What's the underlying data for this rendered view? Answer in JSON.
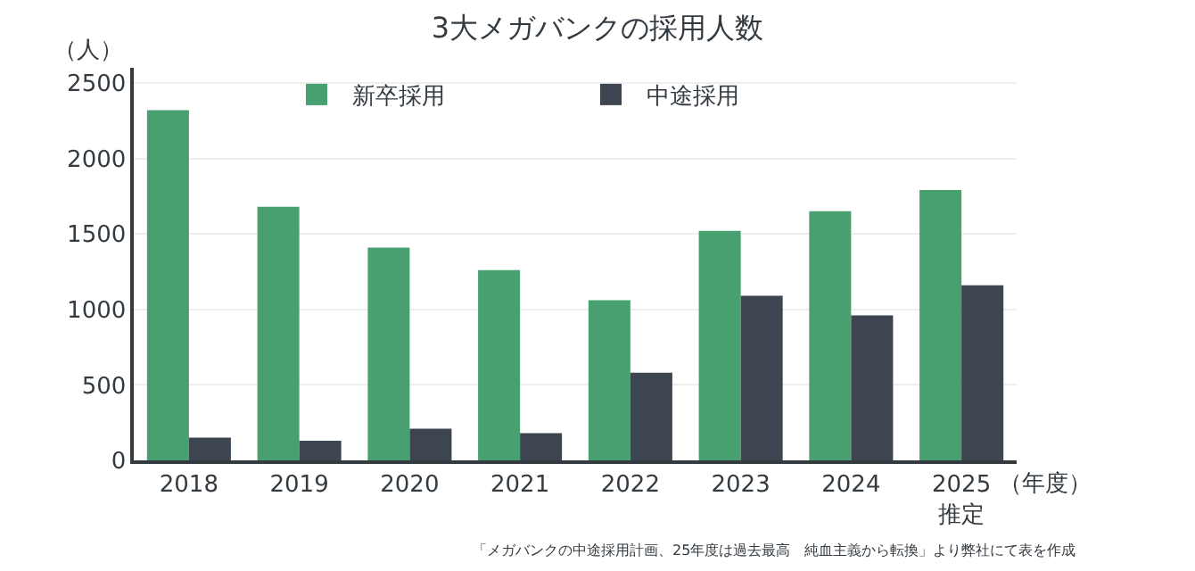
{
  "chart_data": {
    "type": "bar",
    "title": "3大メガバンクの採用人数",
    "ylabel": "（人）",
    "xlabel": "（年度）",
    "categories": [
      "2018",
      "2019",
      "2020",
      "2021",
      "2022",
      "2023",
      "2024",
      "2025\n推定"
    ],
    "series": [
      {
        "name": "新卒採用",
        "color": "#48a070",
        "values": [
          2320,
          1680,
          1410,
          1260,
          1060,
          1520,
          1650,
          1790
        ]
      },
      {
        "name": "中途採用",
        "color": "#3d4650",
        "values": [
          150,
          130,
          210,
          180,
          580,
          1090,
          960,
          1160
        ]
      }
    ],
    "ylim": [
      0,
      2600
    ],
    "yticks": [
      0,
      500,
      1000,
      1500,
      2000,
      2500
    ],
    "grid": "y",
    "legend": "top",
    "annotations": [
      "「メガバンクの中途採用計画、25年度は過去最高　純血主義から転換」より弊社にて表を作成"
    ]
  }
}
